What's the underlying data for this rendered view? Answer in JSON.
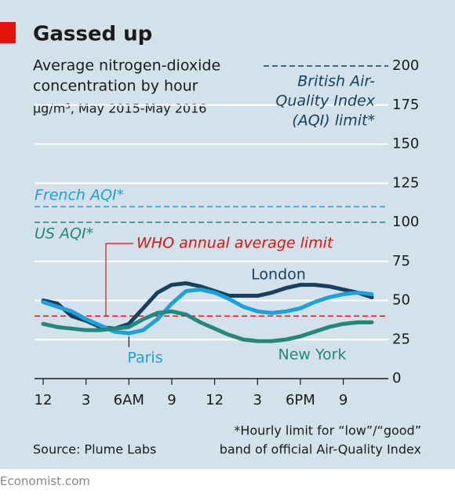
{
  "chart_data": {
    "type": "line",
    "title": "Gassed up",
    "subtitle": [
      "Average nitrogen-dioxide",
      "concentration by hour",
      "µg/m³, May 2015-May 2016"
    ],
    "x": [
      0,
      1,
      2,
      3,
      4,
      5,
      6,
      7,
      8,
      9,
      10,
      11,
      12,
      13,
      14,
      15,
      16,
      17,
      18,
      19,
      20,
      21,
      22,
      23
    ],
    "xlim": [
      0,
      23
    ],
    "xticks": [
      {
        "value": 0,
        "label": "12"
      },
      3,
      {
        "value": 6,
        "label": "6AM"
      },
      9,
      {
        "value": 12,
        "label": "12"
      },
      {
        "value": 15,
        "label": "3"
      },
      {
        "value": 18,
        "label": "6PM"
      },
      {
        "value": 21,
        "label": "9"
      }
    ],
    "ylim": [
      0,
      200
    ],
    "yticks": [
      0,
      25,
      50,
      75,
      100,
      125,
      150,
      175,
      200
    ],
    "grid": true,
    "series": [
      {
        "name": "London",
        "color": "#17405e",
        "values": [
          50,
          48,
          40,
          37,
          33,
          32,
          35,
          45,
          55,
          60,
          61,
          59,
          56,
          53,
          53,
          53,
          55,
          58,
          60,
          60,
          59,
          57,
          55,
          52
        ]
      },
      {
        "name": "Paris",
        "color": "#1ba1dc",
        "values": [
          49,
          46,
          43,
          38,
          34,
          30,
          29,
          31,
          38,
          48,
          56,
          57,
          55,
          51,
          46,
          43,
          42,
          43,
          45,
          49,
          52,
          54,
          55,
          54
        ]
      },
      {
        "name": "New York",
        "color": "#23877a",
        "values": [
          35,
          33,
          32,
          31,
          31,
          32,
          33,
          38,
          42,
          43,
          41,
          36,
          32,
          28,
          25,
          24,
          24,
          25,
          27,
          30,
          33,
          35,
          36,
          36
        ]
      }
    ],
    "reference_lines": [
      {
        "label": [
          "British Air-",
          "Quality Index",
          "(AQI) limit*"
        ],
        "value": 200,
        "color": "#17405e"
      },
      {
        "label": [
          "French AQI*"
        ],
        "value": 110,
        "color": "#1ba1dc"
      },
      {
        "label": [
          "US AQI*"
        ],
        "value": 100,
        "color": "#23877a"
      },
      {
        "label": [
          "WHO annual average limit"
        ],
        "value": 40,
        "color": "#e3120b"
      }
    ],
    "footnote": [
      "*Hourly limit for “low”/“good”",
      "band of official Air-Quality Index"
    ],
    "source": "Source: Plume Labs",
    "brand": "Economist.com"
  }
}
